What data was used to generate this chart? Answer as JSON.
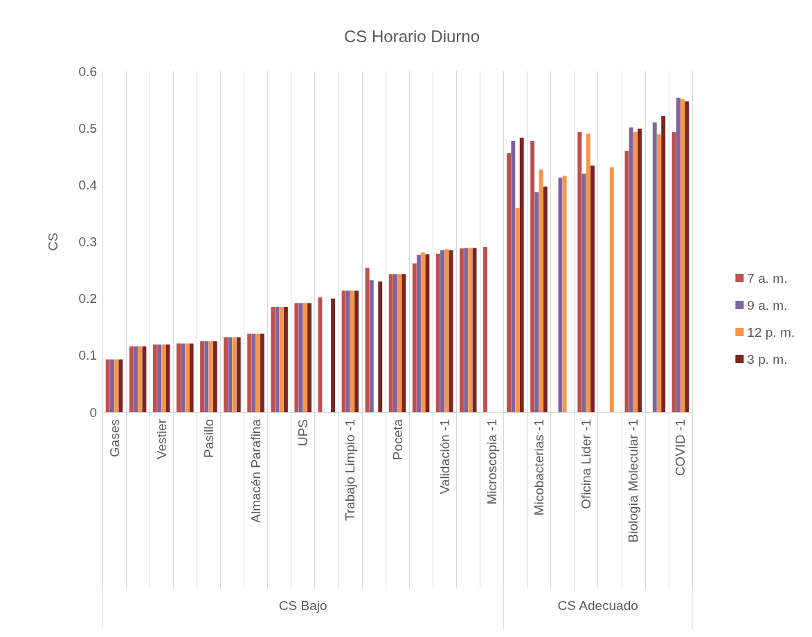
{
  "chart_data": {
    "type": "bar",
    "title": "CS Horario Diurno",
    "ylabel": "CS",
    "categories": [
      "Gases",
      null,
      "Vestier",
      null,
      "Pasillo",
      null,
      "Almacén Parafina",
      null,
      "UPS",
      null,
      "Trabajo Limpio -1",
      null,
      "Poceta",
      null,
      "Validación -1",
      null,
      "Microscopia -1",
      null,
      "Micobacterias -1",
      null,
      "Oficina Líder -1",
      null,
      "Biología Molecular -1",
      null,
      "COVID -1"
    ],
    "series": [
      {
        "name": "7 a. m.",
        "color": "#c0504d",
        "values": [
          0.093,
          0.116,
          0.119,
          0.121,
          0.125,
          0.132,
          0.138,
          0.185,
          0.192,
          0.202,
          0.214,
          0.254,
          0.243,
          0.262,
          0.279,
          0.288,
          0.291,
          0.456,
          0.477,
          null,
          0.493,
          null,
          0.46,
          null,
          0.493
        ]
      },
      {
        "name": "9 a. m.",
        "color": "#8064a2",
        "values": [
          0.093,
          0.116,
          0.119,
          0.121,
          0.125,
          0.132,
          0.138,
          0.185,
          0.192,
          null,
          0.214,
          0.232,
          0.243,
          0.277,
          0.285,
          0.289,
          null,
          0.477,
          0.387,
          0.413,
          0.42,
          null,
          0.501,
          0.51,
          0.553
        ]
      },
      {
        "name": "12 p. m.",
        "color": "#f79646",
        "values": [
          0.093,
          0.116,
          0.119,
          0.121,
          0.125,
          0.132,
          0.138,
          0.185,
          0.192,
          null,
          0.214,
          null,
          0.243,
          0.281,
          0.287,
          0.289,
          null,
          0.359,
          0.427,
          0.416,
          0.49,
          0.431,
          0.493,
          0.489,
          0.551
        ]
      },
      {
        "name": "3 p. m.",
        "color": "#7b2523",
        "values": [
          0.093,
          0.116,
          0.119,
          0.121,
          0.125,
          0.132,
          0.138,
          0.185,
          0.192,
          0.2,
          0.214,
          0.23,
          0.243,
          0.278,
          0.285,
          0.289,
          null,
          0.483,
          0.397,
          null,
          0.434,
          null,
          0.499,
          0.521,
          0.547
        ]
      }
    ],
    "ylim": [
      0,
      0.6
    ],
    "yticks": [
      0,
      0.1,
      0.2,
      0.3,
      0.4,
      0.5,
      0.6
    ],
    "grid": "x",
    "legend": "right",
    "annotations": [
      "CS Bajo",
      "CS Adecuado"
    ]
  }
}
